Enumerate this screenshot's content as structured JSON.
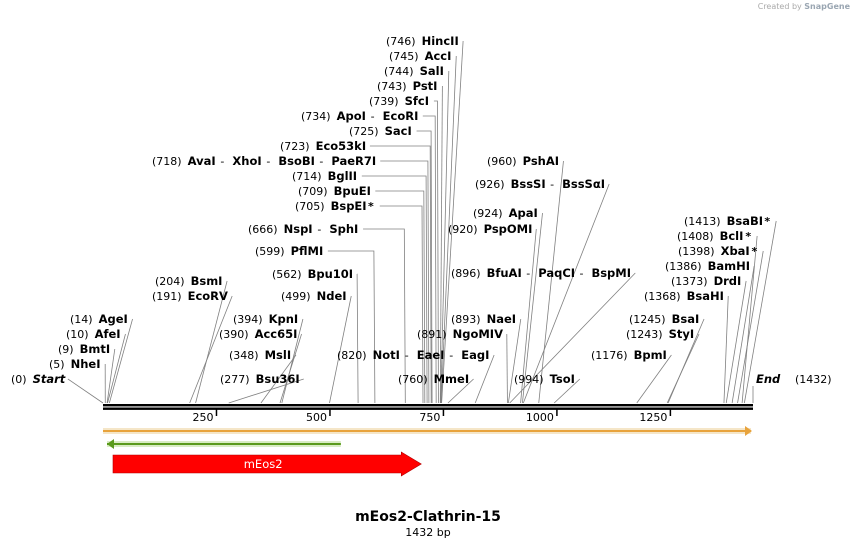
{
  "watermark": {
    "prefix": "Created by",
    "brand": "SnapGene"
  },
  "sequence": {
    "name": "mEos2-Clathrin-15",
    "length_label": "1432 bp",
    "length": 1432
  },
  "ruler": {
    "ticks": [
      250,
      500,
      750,
      1000,
      1250
    ]
  },
  "colors": {
    "backbone": "#000000",
    "orf": "#e8a33c",
    "primer": "#5a9a1c",
    "feature": "#ff0000",
    "leader": "#808080"
  },
  "ends": [
    {
      "pos": 0,
      "pos_label": "(0)",
      "name": "Start"
    },
    {
      "pos": 1432,
      "pos_label": "(1432)",
      "name": "End"
    }
  ],
  "sites": [
    {
      "pos": 5,
      "pos_label": "(5)",
      "names": [
        "NheI"
      ]
    },
    {
      "pos": 9,
      "pos_label": "(9)",
      "names": [
        "BmtI"
      ]
    },
    {
      "pos": 10,
      "pos_label": "(10)",
      "names": [
        "AfeI"
      ]
    },
    {
      "pos": 14,
      "pos_label": "(14)",
      "names": [
        "AgeI"
      ]
    },
    {
      "pos": 191,
      "pos_label": "(191)",
      "names": [
        "EcoRV"
      ]
    },
    {
      "pos": 204,
      "pos_label": "(204)",
      "names": [
        "BsmI"
      ]
    },
    {
      "pos": 277,
      "pos_label": "(277)",
      "names": [
        "Bsu36I"
      ]
    },
    {
      "pos": 348,
      "pos_label": "(348)",
      "names": [
        "MslI"
      ]
    },
    {
      "pos": 390,
      "pos_label": "(390)",
      "names": [
        "Acc65I"
      ]
    },
    {
      "pos": 394,
      "pos_label": "(394)",
      "names": [
        "KpnI"
      ]
    },
    {
      "pos": 499,
      "pos_label": "(499)",
      "names": [
        "NdeI"
      ]
    },
    {
      "pos": 562,
      "pos_label": "(562)",
      "names": [
        "Bpu10I"
      ]
    },
    {
      "pos": 599,
      "pos_label": "(599)",
      "names": [
        "PflMI"
      ]
    },
    {
      "pos": 666,
      "pos_label": "(666)",
      "names": [
        "NspI",
        "SphI"
      ]
    },
    {
      "pos": 705,
      "pos_label": "(705)",
      "names": [
        "BspEI",
        "*"
      ]
    },
    {
      "pos": 709,
      "pos_label": "(709)",
      "names": [
        "BpuEI"
      ]
    },
    {
      "pos": 714,
      "pos_label": "(714)",
      "names": [
        "BglII"
      ]
    },
    {
      "pos": 718,
      "pos_label": "(718)",
      "names": [
        "AvaI",
        "XhoI",
        "BsoBI",
        "PaeR7I"
      ]
    },
    {
      "pos": 723,
      "pos_label": "(723)",
      "names": [
        "Eco53kI"
      ]
    },
    {
      "pos": 725,
      "pos_label": "(725)",
      "names": [
        "SacI"
      ]
    },
    {
      "pos": 734,
      "pos_label": "(734)",
      "names": [
        "ApoI",
        "EcoRI"
      ]
    },
    {
      "pos": 739,
      "pos_label": "(739)",
      "names": [
        "SfcI"
      ]
    },
    {
      "pos": 743,
      "pos_label": "(743)",
      "names": [
        "PstI"
      ]
    },
    {
      "pos": 744,
      "pos_label": "(744)",
      "names": [
        "SalI"
      ]
    },
    {
      "pos": 745,
      "pos_label": "(745)",
      "names": [
        "AccI"
      ]
    },
    {
      "pos": 746,
      "pos_label": "(746)",
      "names": [
        "HincII"
      ]
    },
    {
      "pos": 760,
      "pos_label": "(760)",
      "names": [
        "MmeI"
      ]
    },
    {
      "pos": 820,
      "pos_label": "(820)",
      "names": [
        "NotI",
        "EaeI",
        "EagI"
      ]
    },
    {
      "pos": 891,
      "pos_label": "(891)",
      "names": [
        "NgoMIV"
      ]
    },
    {
      "pos": 893,
      "pos_label": "(893)",
      "names": [
        "NaeI"
      ]
    },
    {
      "pos": 896,
      "pos_label": "(896)",
      "names": [
        "BfuAI",
        "PaqCI",
        "BspMI"
      ]
    },
    {
      "pos": 920,
      "pos_label": "(920)",
      "names": [
        "PspOMI"
      ]
    },
    {
      "pos": 924,
      "pos_label": "(924)",
      "names": [
        "ApaI"
      ]
    },
    {
      "pos": 926,
      "pos_label": "(926)",
      "names": [
        "BssSI",
        "BssSαI"
      ]
    },
    {
      "pos": 960,
      "pos_label": "(960)",
      "names": [
        "PshAI"
      ]
    },
    {
      "pos": 994,
      "pos_label": "(994)",
      "names": [
        "TsoI"
      ]
    },
    {
      "pos": 1176,
      "pos_label": "(1176)",
      "names": [
        "BpmI"
      ]
    },
    {
      "pos": 1243,
      "pos_label": "(1243)",
      "names": [
        "StyI"
      ]
    },
    {
      "pos": 1245,
      "pos_label": "(1245)",
      "names": [
        "BsaI"
      ]
    },
    {
      "pos": 1368,
      "pos_label": "(1368)",
      "names": [
        "BsaHI"
      ]
    },
    {
      "pos": 1373,
      "pos_label": "(1373)",
      "names": [
        "DrdI"
      ]
    },
    {
      "pos": 1386,
      "pos_label": "(1386)",
      "names": [
        "BamHI"
      ]
    },
    {
      "pos": 1398,
      "pos_label": "(1398)",
      "names": [
        "XbaI",
        "*"
      ]
    },
    {
      "pos": 1408,
      "pos_label": "(1408)",
      "names": [
        "BclI",
        "*"
      ]
    },
    {
      "pos": 1413,
      "pos_label": "(1413)",
      "names": [
        "BsaBI",
        "*"
      ]
    }
  ],
  "features": [
    {
      "name": "ORF",
      "start": 1,
      "end": 1432,
      "direction": "forward",
      "kind": "orf",
      "label": ""
    },
    {
      "name": "primer",
      "start": 1,
      "end": 524,
      "direction": "reverse",
      "kind": "primer",
      "label": ""
    },
    {
      "name": "mEos2",
      "start": 1,
      "end": 699,
      "direction": "forward",
      "kind": "feature",
      "label": "mEos2"
    }
  ]
}
